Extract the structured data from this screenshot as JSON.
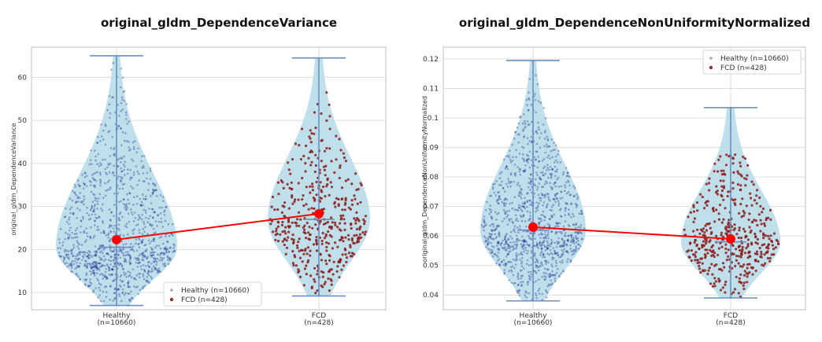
{
  "chart_data": [
    {
      "type": "violin",
      "title": "original_gldm_DependenceVariance",
      "ylabel": "original_gldm_DependenceVariance",
      "xlabel": "",
      "categories": [
        "Healthy\n(n=10660)",
        "FCD\n(n=428)"
      ],
      "yticks": [
        10,
        20,
        30,
        40,
        50,
        60
      ],
      "ylim": [
        6,
        67
      ],
      "grid": true,
      "legend": {
        "position": "bottom-right",
        "entries": [
          "Healthy (n=10660)",
          "FCD (n=428)"
        ]
      },
      "series": [
        {
          "name": "Healthy (n=10660)",
          "n": 10660,
          "min": 7,
          "max": 65,
          "median": 20.5,
          "mean": 22.3
        },
        {
          "name": "FCD (n=428)",
          "n": 428,
          "min": 9.2,
          "max": 64.5,
          "median": 27.0,
          "mean": 28.3
        }
      ],
      "mean_line": [
        22.3,
        28.3
      ]
    },
    {
      "type": "violin",
      "title": "original_gldm_DependenceNonUniformityNormalized",
      "ylabel": "original_gldm_DependenceNonUniformityNormalized",
      "xlabel": "",
      "categories": [
        "Healthy\n(n=10660)",
        "FCD\n(n=428)"
      ],
      "yticks": [
        0.04,
        0.05,
        0.06,
        0.07,
        0.08,
        0.09,
        0.1,
        0.11,
        0.12
      ],
      "ylim": [
        0.035,
        0.124
      ],
      "grid": true,
      "legend": {
        "position": "top-right",
        "entries": [
          "Healthy (n=10660)",
          "FCD (n=428)"
        ]
      },
      "series": [
        {
          "name": "Healthy (n=10660)",
          "n": 10660,
          "min": 0.038,
          "max": 0.1195,
          "median": 0.062,
          "mean": 0.063
        },
        {
          "name": "FCD (n=428)",
          "n": 428,
          "min": 0.039,
          "max": 0.1035,
          "median": 0.058,
          "mean": 0.059
        }
      ],
      "mean_line": [
        0.063,
        0.059
      ]
    }
  ],
  "colors": {
    "violin": "#b8dde8",
    "healthy_points": "#1a1f8c",
    "fcd_points": "#8b1a1a",
    "mean_marker": "#ff0000",
    "whisker": "#6a8fc0",
    "grid": "#dcdcdc"
  }
}
